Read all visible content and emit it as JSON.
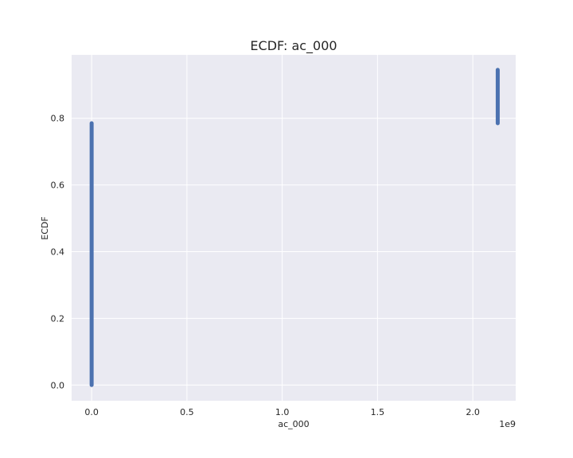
{
  "chart_data": {
    "type": "scatter",
    "title": "ECDF: ac_000",
    "xlabel": "ac_000",
    "ylabel": "ECDF",
    "x_offset_label": "1e9",
    "xlim": [
      -105000000,
      2225000000
    ],
    "ylim": [
      -0.047,
      0.99
    ],
    "xticks": [
      0,
      500000000,
      1000000000,
      1500000000,
      2000000000
    ],
    "xtick_labels": [
      "0.0",
      "0.5",
      "1.0",
      "1.5",
      "2.0"
    ],
    "yticks": [
      0.0,
      0.2,
      0.4,
      0.6,
      0.8
    ],
    "ytick_labels": [
      "0.0",
      "0.2",
      "0.4",
      "0.6",
      "0.8"
    ],
    "grid": true,
    "series": [
      {
        "color": "#4c72b0",
        "points": [
          {
            "x": 0,
            "y_from": 0.0,
            "y_to": 0.785
          },
          {
            "x": 2130706432,
            "y_from": 0.785,
            "y_to": 0.945
          }
        ]
      }
    ]
  }
}
